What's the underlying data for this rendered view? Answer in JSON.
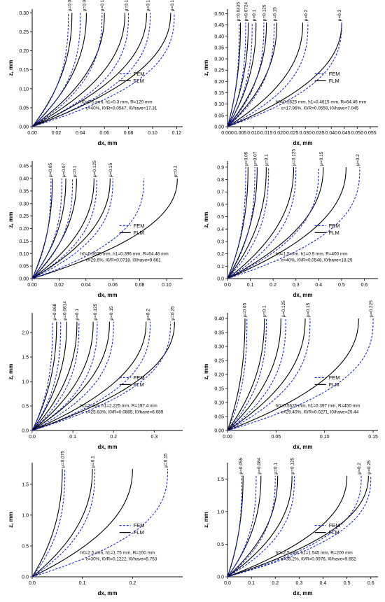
{
  "legend": {
    "fem": "FEM",
    "flm": "FLM"
  },
  "colors": {
    "fem": "#1a2adb",
    "flm": "#000000"
  },
  "chart_data": [
    {
      "type": "line",
      "xlabel": "dx, mm",
      "ylabel": "z, mm",
      "xlim": [
        0,
        0.125
      ],
      "ylim": [
        0,
        0.31
      ],
      "xticks": [
        "0.00",
        "0.02",
        "0.04",
        "0.06",
        "0.08",
        "0.10",
        "0.12"
      ],
      "yticks": [
        "0.00",
        "0.05",
        "0.10",
        "0.15",
        "0.20",
        "0.25",
        "0.30"
      ],
      "info": [
        "h0=0.5 mm, h1=0.3 mm, R=120 mm",
        "→ ε=40%, l0/R=0.0547, l0/have=17.31"
      ],
      "series": [
        {
          "mu": "μ=0.05",
          "fem_end": 0.03,
          "flm_end": 0.033,
          "top": 0.3
        },
        {
          "mu": "μ=0.075",
          "fem_end": 0.04,
          "flm_end": 0.045,
          "top": 0.3
        },
        {
          "mu": "μ=0.1",
          "fem_end": 0.058,
          "flm_end": 0.06,
          "top": 0.3
        },
        {
          "mu": "μ=0.125",
          "fem_end": 0.08,
          "flm_end": 0.077,
          "top": 0.3
        },
        {
          "mu": "μ=0.15",
          "fem_end": 0.098,
          "flm_end": 0.095,
          "top": 0.3
        },
        {
          "mu": "μ=0.175",
          "fem_end": 0.118,
          "flm_end": 0.115,
          "top": 0.3
        }
      ]
    },
    {
      "type": "line",
      "xlabel": "dx, mm",
      "ylabel": "z, mm",
      "xlim": [
        0,
        0.058
      ],
      "ylim": [
        0,
        0.52
      ],
      "xticks": [
        "0.000",
        "0.005",
        "0.010",
        "0.015",
        "0.020",
        "0.025",
        "0.030",
        "0.035",
        "0.040",
        "0.045",
        "0.050",
        "0.055"
      ],
      "yticks": [
        "0.00",
        "0.05",
        "0.10",
        "0.15",
        "0.20",
        "0.25",
        "0.30",
        "0.35",
        "0.40",
        "0.45",
        "0.50"
      ],
      "info": [
        "h0=0.5625 mm, h1=0.4615 mm, R=64.46 mm",
        "→ ε=17.96%, l0/R=0.0559, l0/have=7.045"
      ],
      "series": [
        {
          "mu": "μ=0.0435",
          "fem_end": 0.0045,
          "flm_end": 0.005,
          "top": 0.46
        },
        {
          "mu": "μ=0.0724",
          "fem_end": 0.007,
          "flm_end": 0.008,
          "top": 0.46
        },
        {
          "mu": "μ=0.1",
          "fem_end": 0.0095,
          "flm_end": 0.011,
          "top": 0.46
        },
        {
          "mu": "μ=0.125",
          "fem_end": 0.014,
          "flm_end": 0.015,
          "top": 0.46
        },
        {
          "mu": "μ=0.15",
          "fem_end": 0.018,
          "flm_end": 0.019,
          "top": 0.46
        },
        {
          "mu": "μ=0.2",
          "fem_end": 0.031,
          "flm_end": 0.029,
          "top": 0.46
        },
        {
          "mu": "μ=0.3",
          "fem_end": 0.044,
          "flm_end": 0.044,
          "top": 0.46
        }
      ]
    },
    {
      "type": "line",
      "xlabel": "dx, mm",
      "ylabel": "z, mm",
      "xlim": [
        0,
        0.112
      ],
      "ylim": [
        0,
        0.47
      ],
      "xticks": [
        "0.00",
        "0.02",
        "0.04",
        "0.06",
        "0.08",
        "0.10"
      ],
      "yticks": [
        "0.00",
        "0.05",
        "0.10",
        "0.15",
        "0.20",
        "0.25",
        "0.30",
        "0.35",
        "0.40",
        "0.45"
      ],
      "info": [
        "h0=0.5625 mm, h1=0.396 mm, R=64.46 mm",
        "→ ε=29.6%, l0/R=0.0718, l0/have=9.661"
      ],
      "series": [
        {
          "mu": "μ=0.05",
          "fem_end": 0.014,
          "flm_end": 0.015,
          "top": 0.4
        },
        {
          "mu": "μ=0.07",
          "fem_end": 0.022,
          "flm_end": 0.025,
          "top": 0.4
        },
        {
          "mu": "μ=0.1",
          "fem_end": 0.03,
          "flm_end": 0.033,
          "top": 0.4
        },
        {
          "mu": "μ=0.125",
          "fem_end": 0.048,
          "flm_end": 0.046,
          "top": 0.4
        },
        {
          "mu": "μ=0.15",
          "fem_end": 0.06,
          "flm_end": 0.058,
          "top": 0.4
        },
        {
          "mu": "μ=0.2",
          "fem_end": 0.083,
          "flm_end": 0.108,
          "top": 0.4
        }
      ]
    },
    {
      "type": "line",
      "xlabel": "dx, mm",
      "ylabel": "z, mm",
      "xlim": [
        0,
        0.66
      ],
      "ylim": [
        0,
        0.95
      ],
      "xticks": [
        "0.0",
        "0.1",
        "0.2",
        "0.3",
        "0.4",
        "0.5",
        "0.6"
      ],
      "yticks": [
        "0.0",
        "0.1",
        "0.2",
        "0.3",
        "0.4",
        "0.5",
        "0.6",
        "0.7",
        "0.8",
        "0.9"
      ],
      "info": [
        "h0=1.5 mm, h1=0.9 mm, R=400 mm",
        "→ ε=40%, l0/R=0.0548, l0/have=18.25"
      ],
      "series": [
        {
          "mu": "μ=0.05",
          "fem_end": 0.08,
          "flm_end": 0.09,
          "top": 0.9
        },
        {
          "mu": "μ=0.07",
          "fem_end": 0.12,
          "flm_end": 0.13,
          "top": 0.9
        },
        {
          "mu": "μ=0.1",
          "fem_end": 0.18,
          "flm_end": 0.17,
          "top": 0.9
        },
        {
          "mu": "μ=0.125",
          "fem_end": 0.3,
          "flm_end": 0.29,
          "top": 0.9
        },
        {
          "mu": "μ=0.15",
          "fem_end": 0.4,
          "flm_end": 0.42,
          "top": 0.9
        },
        {
          "mu": "μ=0.2",
          "fem_end": 0.58,
          "flm_end": 0.52,
          "top": 0.9
        }
      ]
    },
    {
      "type": "line",
      "xlabel": "dx, mm",
      "ylabel": "z, mm",
      "xlim": [
        0,
        0.37
      ],
      "ylim": [
        0,
        2.4
      ],
      "xticks": [
        "0.0",
        "0.1",
        "0.2",
        "0.3"
      ],
      "yticks": [
        "0.0",
        "0.5",
        "1.0",
        "1.5",
        "2.0"
      ],
      "info": [
        "h0=3 mm, h1=2.225 mm, R=197.4 mm",
        "→ ε=25.83%, l0/R=0.0885, l0/have=6.689"
      ],
      "series": [
        {
          "mu": "μ=0.068",
          "fem_end": 0.05,
          "flm_end": 0.06,
          "top": 2.22
        },
        {
          "mu": "μ=0.0814",
          "fem_end": 0.07,
          "flm_end": 0.085,
          "top": 2.22
        },
        {
          "mu": "μ=0.1",
          "fem_end": 0.115,
          "flm_end": 0.11,
          "top": 2.22
        },
        {
          "mu": "μ=0.125",
          "fem_end": 0.16,
          "flm_end": 0.15,
          "top": 2.22
        },
        {
          "mu": "μ=0.15",
          "fem_end": 0.2,
          "flm_end": 0.19,
          "top": 2.22
        },
        {
          "mu": "μ=0.2",
          "fem_end": 0.29,
          "flm_end": 0.28,
          "top": 2.22
        },
        {
          "mu": "μ=0.25",
          "fem_end": 0.34,
          "flm_end": 0.35,
          "top": 2.22
        }
      ]
    },
    {
      "type": "line",
      "xlabel": "dx, mm",
      "ylabel": "z, mm",
      "xlim": [
        0,
        0.155
      ],
      "ylim": [
        0,
        0.42
      ],
      "xticks": [
        "0.00",
        "0.05",
        "0.10",
        "0.15"
      ],
      "yticks": [
        "0.00",
        "0.05",
        "0.10",
        "0.15",
        "0.20",
        "0.25",
        "0.30",
        "0.35",
        "0.40"
      ],
      "info": [
        "h0=0.5625 mm, h1=0.397 mm, R=450 mm",
        "→ ε=29.40%, l0/R=0.0271, l0/have=25.44"
      ],
      "series": [
        {
          "mu": "μ=0.05",
          "fem_end": 0.02,
          "flm_end": 0.018,
          "top": 0.4
        },
        {
          "mu": "μ=0.1",
          "fem_end": 0.04,
          "flm_end": 0.038,
          "top": 0.4
        },
        {
          "mu": "μ=0.125",
          "fem_end": 0.06,
          "flm_end": 0.055,
          "top": 0.4
        },
        {
          "mu": "μ=0.15",
          "fem_end": 0.085,
          "flm_end": 0.08,
          "top": 0.4
        },
        {
          "mu": "μ=0.225",
          "fem_end": 0.15,
          "flm_end": 0.135,
          "top": 0.4
        }
      ]
    },
    {
      "type": "line",
      "xlabel": "dx, mm",
      "ylabel": "z, mm",
      "xlim": [
        0,
        0.3
      ],
      "ylim": [
        0,
        1.85
      ],
      "xticks": [
        "0.0",
        "0.1",
        "0.2"
      ],
      "yticks": [
        "0.0",
        "0.5",
        "1.0",
        "1.5"
      ],
      "info": [
        "h0=2.5 mm, h1=1.75 mm, R=100 mm",
        "→ ε=30%, l0/R=0.1222, l0/have=5.753"
      ],
      "series": [
        {
          "mu": "μ=0.075",
          "fem_end": 0.065,
          "flm_end": 0.06,
          "top": 1.75
        },
        {
          "mu": "μ=0.1",
          "fem_end": 0.125,
          "flm_end": 0.12,
          "top": 1.75
        },
        {
          "mu": "μ=0.15",
          "fem_end": 0.27,
          "flm_end": 0.2,
          "top": 1.75
        }
      ]
    },
    {
      "type": "line",
      "xlabel": "dx, mm",
      "ylabel": "z, mm",
      "xlim": [
        0,
        0.63
      ],
      "ylim": [
        0,
        1.75
      ],
      "xticks": [
        "0.0",
        "0.1",
        "0.2",
        "0.3",
        "0.4",
        "0.5",
        "0.6"
      ],
      "yticks": [
        "0.0",
        "0.5",
        "1.0",
        "1.5"
      ],
      "info": [
        "h0=2.5 mm, h1=1.545 mm, R=200 mm",
        "→ ε=38.2%, l0/R=0.0976, l0/have=9.652"
      ],
      "series": [
        {
          "mu": "μ=0.055",
          "fem_end": 0.06,
          "flm_end": 0.065,
          "top": 1.55
        },
        {
          "mu": "μ=0.084",
          "fem_end": 0.12,
          "flm_end": 0.14,
          "top": 1.55
        },
        {
          "mu": "μ=0.1",
          "fem_end": 0.2,
          "flm_end": 0.21,
          "top": 1.55
        },
        {
          "mu": "μ=0.125",
          "fem_end": 0.28,
          "flm_end": 0.27,
          "top": 1.55
        },
        {
          "mu": "μ=0.2",
          "fem_end": 0.56,
          "flm_end": 0.5,
          "top": 1.55
        },
        {
          "mu": "μ=0.25",
          "fem_end": 0.6,
          "flm_end": 0.59,
          "top": 1.55
        }
      ]
    }
  ]
}
